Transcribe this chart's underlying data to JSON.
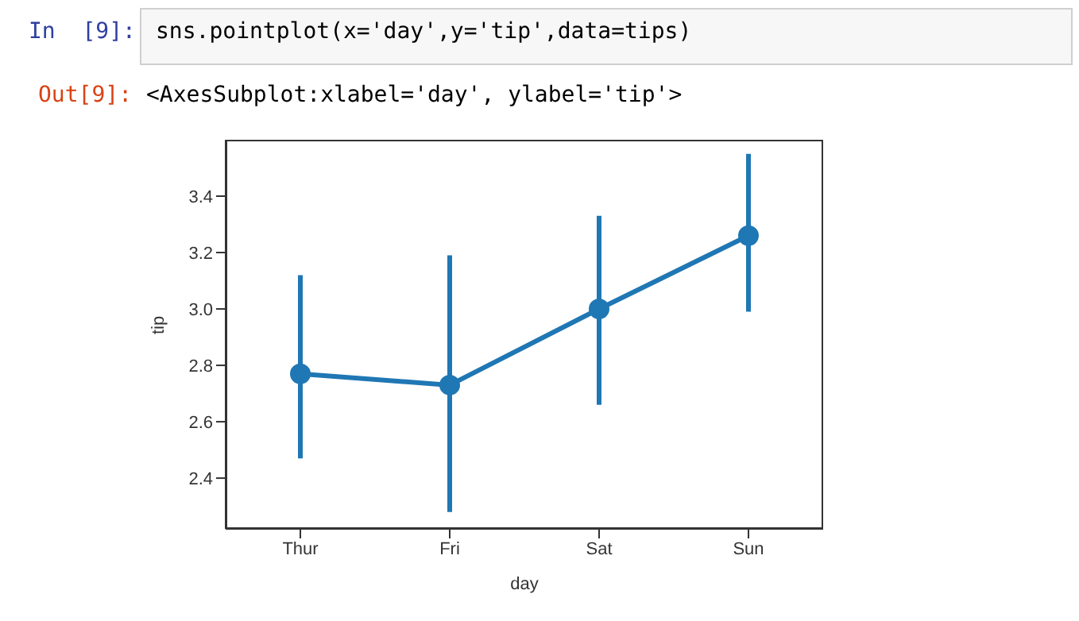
{
  "chart_data": {
    "type": "line",
    "xlabel": "day",
    "ylabel": "tip",
    "annotations": [
      "In  [9]:",
      "sns.pointplot(x='day',y='tip',data=tips)",
      "Out[9]:",
      "<AxesSubplot:xlabel='day', ylabel='tip'>"
    ],
    "categories": [
      "Thur",
      "Fri",
      "Sat",
      "Sun"
    ],
    "series": [
      {
        "color": "#1f77b4",
        "values": [
          2.77,
          2.73,
          3.0,
          3.26
        ],
        "errors": [
          [
            2.47,
            3.12
          ],
          [
            2.28,
            3.19
          ],
          [
            2.66,
            3.33
          ],
          [
            2.99,
            3.55
          ]
        ]
      }
    ],
    "ylim": [
      2.22,
      3.6
    ],
    "yticks": [
      2.4,
      2.6,
      2.8,
      {
        "value": 3,
        "label": "3.0"
      },
      3.2,
      3.4
    ],
    "marker": "circle",
    "line_style": "solid",
    "grid": false,
    "legend": false
  }
}
